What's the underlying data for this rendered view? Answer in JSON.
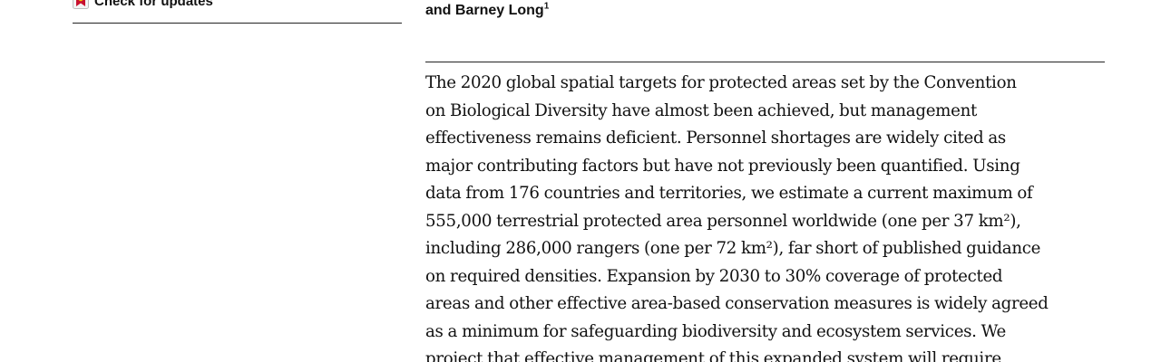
{
  "sidebar": {
    "check_for_updates_label": "Check for updates"
  },
  "header": {
    "authors_tail": "and Barney Long",
    "authors_affiliation_mark": "1"
  },
  "abstract": {
    "lines": [
      "The 2020 global spatial targets for protected areas set by the Convention",
      "on Biological Diversity have almost been achieved, but management",
      "effectiveness remains deficient. Personnel shortages are widely cited as",
      "major contributing factors but have not previously been quantified. Using",
      "data from 176 countries and territories, we estimate a current maximum of",
      "555,000 terrestrial protected area personnel worldwide (one per 37 km²),",
      "including 286,000 rangers (one per 72 km²), far short of published guidance",
      "on required densities. Expansion by 2030 to 30% coverage of protected",
      "areas and other effective area-based conservation measures is widely agreed",
      "as a minimum for safeguarding biodiversity and ecosystem services. We",
      "project that effective management of this expanded system will require"
    ]
  },
  "colors": {
    "text": "#111111",
    "rule": "#222222",
    "icon_red": "#c8102e",
    "icon_yellow": "#f5c400"
  },
  "icons": {
    "update": "crossmark-icon"
  }
}
